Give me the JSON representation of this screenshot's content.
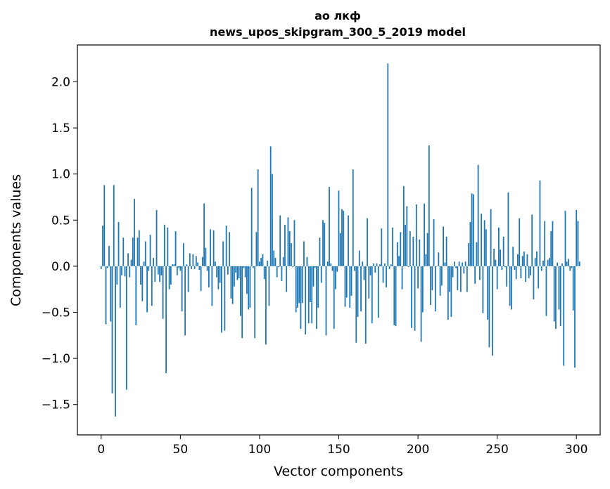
{
  "chart_data": {
    "type": "bar",
    "title_line1": "ао лкф",
    "title_line2": "news_upos_skipgram_300_5_2019 model",
    "xlabel": "Vector components",
    "ylabel": "Components values",
    "xlim": [
      -15,
      315
    ],
    "ylim": [
      -1.83,
      2.4
    ],
    "xticks": [
      0,
      50,
      100,
      150,
      200,
      250,
      300
    ],
    "xtick_labels": [
      "0",
      "50",
      "100",
      "150",
      "200",
      "250",
      "300"
    ],
    "yticks": [
      -1.5,
      -1.0,
      -0.5,
      0.0,
      0.5,
      1.0,
      1.5,
      2.0
    ],
    "ytick_labels": [
      "−1.5",
      "−1.0",
      "−0.5",
      "0.0",
      "0.5",
      "1.0",
      "1.5",
      "2.0"
    ],
    "grid": false,
    "bar_color": "#1f77b4",
    "values": [
      -0.03,
      0.44,
      0.88,
      -0.63,
      -0.02,
      0.22,
      -0.6,
      -1.38,
      0.88,
      -1.63,
      -0.2,
      0.48,
      -0.45,
      -0.1,
      0.31,
      -0.11,
      -1.34,
      0.14,
      -0.12,
      0.07,
      0.31,
      0.73,
      -0.64,
      0.31,
      0.39,
      -0.2,
      -0.38,
      0.05,
      0.27,
      -0.5,
      -0.05,
      0.34,
      -0.43,
      0.09,
      -0.17,
      0.61,
      -0.09,
      -0.17,
      -0.1,
      -0.57,
      0.45,
      -1.16,
      0.42,
      -0.25,
      -0.2,
      0.02,
      0.02,
      0.38,
      -0.1,
      -0.02,
      -0.05,
      -0.49,
      0.25,
      -0.75,
      0.02,
      -0.28,
      0.14,
      -0.03,
      0.13,
      -0.03,
      0.11,
      0.04,
      -0.04,
      -0.27,
      0.1,
      0.68,
      0.2,
      -0.05,
      -0.23,
      0.4,
      -0.43,
      0.39,
      0.05,
      -0.12,
      -0.25,
      -0.18,
      -0.72,
      0.27,
      -0.7,
      0.44,
      -0.09,
      0.37,
      -0.35,
      -0.41,
      -0.22,
      -0.07,
      -0.15,
      -0.13,
      -0.54,
      -0.78,
      -0.02,
      -0.12,
      -0.3,
      -0.47,
      -0.45,
      0.85,
      -0.02,
      -0.78,
      0.37,
      1.05,
      0.05,
      0.09,
      0.13,
      -0.14,
      -0.85,
      0.06,
      -0.43,
      1.3,
      1.0,
      0.17,
      0.09,
      -0.12,
      -0.01,
      0.55,
      -0.16,
      0.1,
      0.45,
      -0.28,
      0.53,
      0.38,
      0.25,
      -0.01,
      0.5,
      -0.5,
      -0.45,
      -0.4,
      -0.68,
      -0.4,
      0.27,
      -0.74,
      0.1,
      -0.62,
      -0.39,
      -0.62,
      -0.22,
      -0.02,
      -0.68,
      -0.45,
      0.31,
      -0.18,
      0.5,
      0.47,
      -0.75,
      0.05,
      0.86,
      0.03,
      -0.05,
      -0.68,
      -0.25,
      -0.06,
      0.82,
      0.36,
      0.62,
      0.6,
      -0.44,
      -0.34,
      0.55,
      -0.45,
      -0.32,
      1.05,
      -0.05,
      -0.83,
      -0.55,
      0.17,
      -0.49,
      0.05,
      -0.15,
      -0.84,
      0.52,
      -0.35,
      -0.1,
      -0.62,
      0.03,
      -0.07,
      0.03,
      -0.56,
      0.02,
      0.41,
      -0.18,
      0.03,
      -0.23,
      2.2,
      -0.03,
      0.02,
      0.42,
      -0.64,
      -0.65,
      0.26,
      0.11,
      0.37,
      -0.25,
      0.87,
      0.45,
      0.65,
      -0.01,
      0.38,
      -0.67,
      0.32,
      -0.7,
      0.67,
      -0.24,
      0.29,
      -0.82,
      -0.5,
      0.68,
      0.13,
      0.36,
      1.31,
      -0.42,
      -0.26,
      0.51,
      -0.49,
      0.0,
      0.15,
      -0.32,
      -0.21,
      0.43,
      0.04,
      0.32,
      -0.58,
      -0.28,
      -0.55,
      -0.12,
      0.05,
      -0.02,
      -0.26,
      0.05,
      -0.28,
      0.04,
      -0.08,
      0.05,
      -0.28,
      0.25,
      0.48,
      0.79,
      0.78,
      -0.19,
      0.26,
      1.1,
      -0.15,
      0.57,
      -0.51,
      0.5,
      0.4,
      -0.58,
      -0.88,
      0.62,
      -0.97,
      0.19,
      0.07,
      -0.25,
      0.42,
      0.18,
      -0.04,
      0.32,
      -0.01,
      -0.22,
      0.8,
      -0.43,
      -0.47,
      0.21,
      -0.04,
      -0.14,
      0.13,
      0.52,
      -0.13,
      0.11,
      0.16,
      -0.17,
      0.13,
      -0.13,
      -0.1,
      0.56,
      -0.36,
      0.09,
      0.16,
      -0.24,
      0.93,
      -0.05,
      0.06,
      0.49,
      -0.54,
      0.07,
      0.09,
      0.38,
      0.49,
      -0.6,
      -0.68,
      0.04,
      -0.47,
      -0.65,
      0.03,
      -1.08,
      0.6,
      0.05,
      0.08,
      -0.05,
      -0.02,
      -0.48,
      -1.1,
      0.61,
      0.49,
      0.05
    ]
  }
}
